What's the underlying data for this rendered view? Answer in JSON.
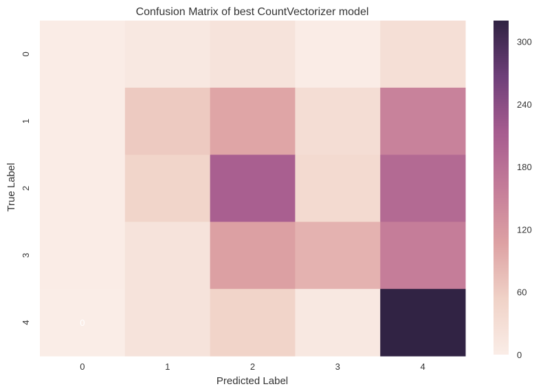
{
  "chart_data": {
    "type": "heatmap",
    "title": "Confusion Matrix of best CountVectorizer model",
    "xlabel": "Predicted Label",
    "ylabel": "True Label",
    "x_categories": [
      "0",
      "1",
      "2",
      "3",
      "4"
    ],
    "y_categories": [
      "0",
      "1",
      "2",
      "3",
      "4"
    ],
    "values": [
      [
        2,
        10,
        20,
        1,
        28
      ],
      [
        2,
        62,
        102,
        32,
        152
      ],
      [
        2,
        48,
        208,
        38,
        190
      ],
      [
        2,
        20,
        108,
        88,
        158
      ],
      [
        0,
        20,
        50,
        10,
        318
      ]
    ],
    "cell_annotations": [
      {
        "row": 4,
        "col": 0,
        "text": "0"
      }
    ],
    "colorbar": {
      "ticks": [
        "0",
        "60",
        "120",
        "180",
        "240",
        "300"
      ],
      "tick_values": [
        0,
        60,
        120,
        180,
        240,
        300
      ],
      "range": [
        0,
        320
      ]
    },
    "colormap": [
      "#faede7",
      "#f0d2c7",
      "#dda1a3",
      "#c47c99",
      "#a65c8f",
      "#6e3f79",
      "#2f2242"
    ],
    "grid": false
  }
}
